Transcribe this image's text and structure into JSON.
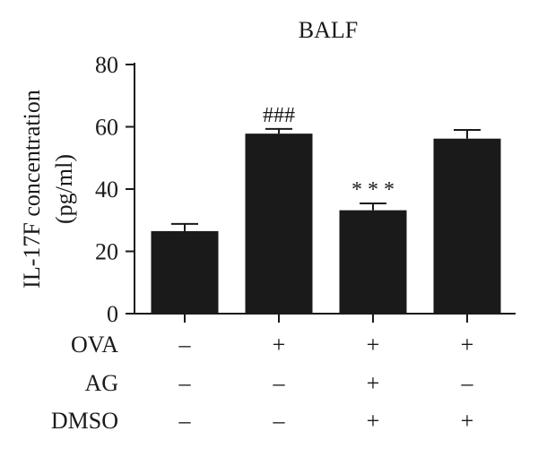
{
  "chart_data": {
    "type": "bar",
    "title": "BALF",
    "ylabel_lines": [
      "IL-17F concentration",
      "(pg/ml)"
    ],
    "ylim": [
      0,
      80
    ],
    "yticks": [
      0,
      20,
      40,
      60,
      80
    ],
    "bars": [
      {
        "value": 26.5,
        "error": 2.3,
        "annotation": ""
      },
      {
        "value": 57.8,
        "error": 1.5,
        "annotation": "###"
      },
      {
        "value": 33.2,
        "error": 2.2,
        "annotation": "* * *"
      },
      {
        "value": 56.2,
        "error": 2.8,
        "annotation": ""
      }
    ],
    "treatment_table": {
      "rows": [
        {
          "label": "OVA",
          "values": [
            "–",
            "+",
            "+",
            "+"
          ]
        },
        {
          "label": "AG",
          "values": [
            "–",
            "–",
            "+",
            "–"
          ]
        },
        {
          "label": "DMSO",
          "values": [
            "–",
            "–",
            "+",
            "+"
          ]
        }
      ]
    },
    "colors": {
      "bar": "#1a1a1a",
      "axis": "#1a1a1a",
      "text": "#1a1a1a"
    }
  }
}
